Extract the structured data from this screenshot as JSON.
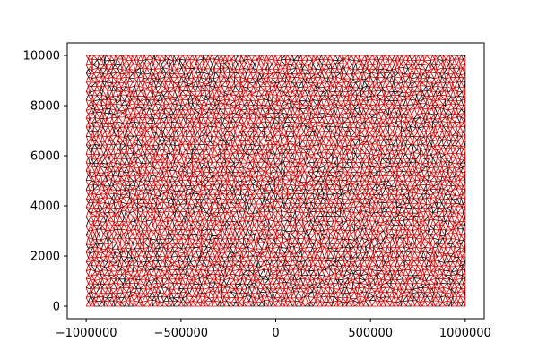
{
  "chart_data": {
    "type": "line",
    "title": "",
    "xlabel": "",
    "ylabel": "",
    "xlim": [
      -1100000,
      1100000
    ],
    "ylim": [
      -500,
      10500
    ],
    "grid": false,
    "legend": "none",
    "x_ticks": [
      {
        "value": -1000000,
        "label": "−1000000"
      },
      {
        "value": -500000,
        "label": "−500000"
      },
      {
        "value": 0,
        "label": "0"
      },
      {
        "value": 500000,
        "label": "500000"
      },
      {
        "value": 1000000,
        "label": "1000000"
      }
    ],
    "y_ticks": [
      {
        "value": 0,
        "label": "0"
      },
      {
        "value": 2000,
        "label": "2000"
      },
      {
        "value": 4000,
        "label": "4000"
      },
      {
        "value": 6000,
        "label": "6000"
      },
      {
        "value": 8000,
        "label": "8000"
      },
      {
        "value": 10000,
        "label": "10000"
      }
    ],
    "series": [
      {
        "kind": "mesh",
        "x_range": [
          -1000000,
          1000000
        ],
        "y_range": [
          0,
          10000
        ],
        "columns": 90,
        "rows": 56,
        "colors": [
          "#cc0000",
          "#000000"
        ]
      }
    ]
  }
}
